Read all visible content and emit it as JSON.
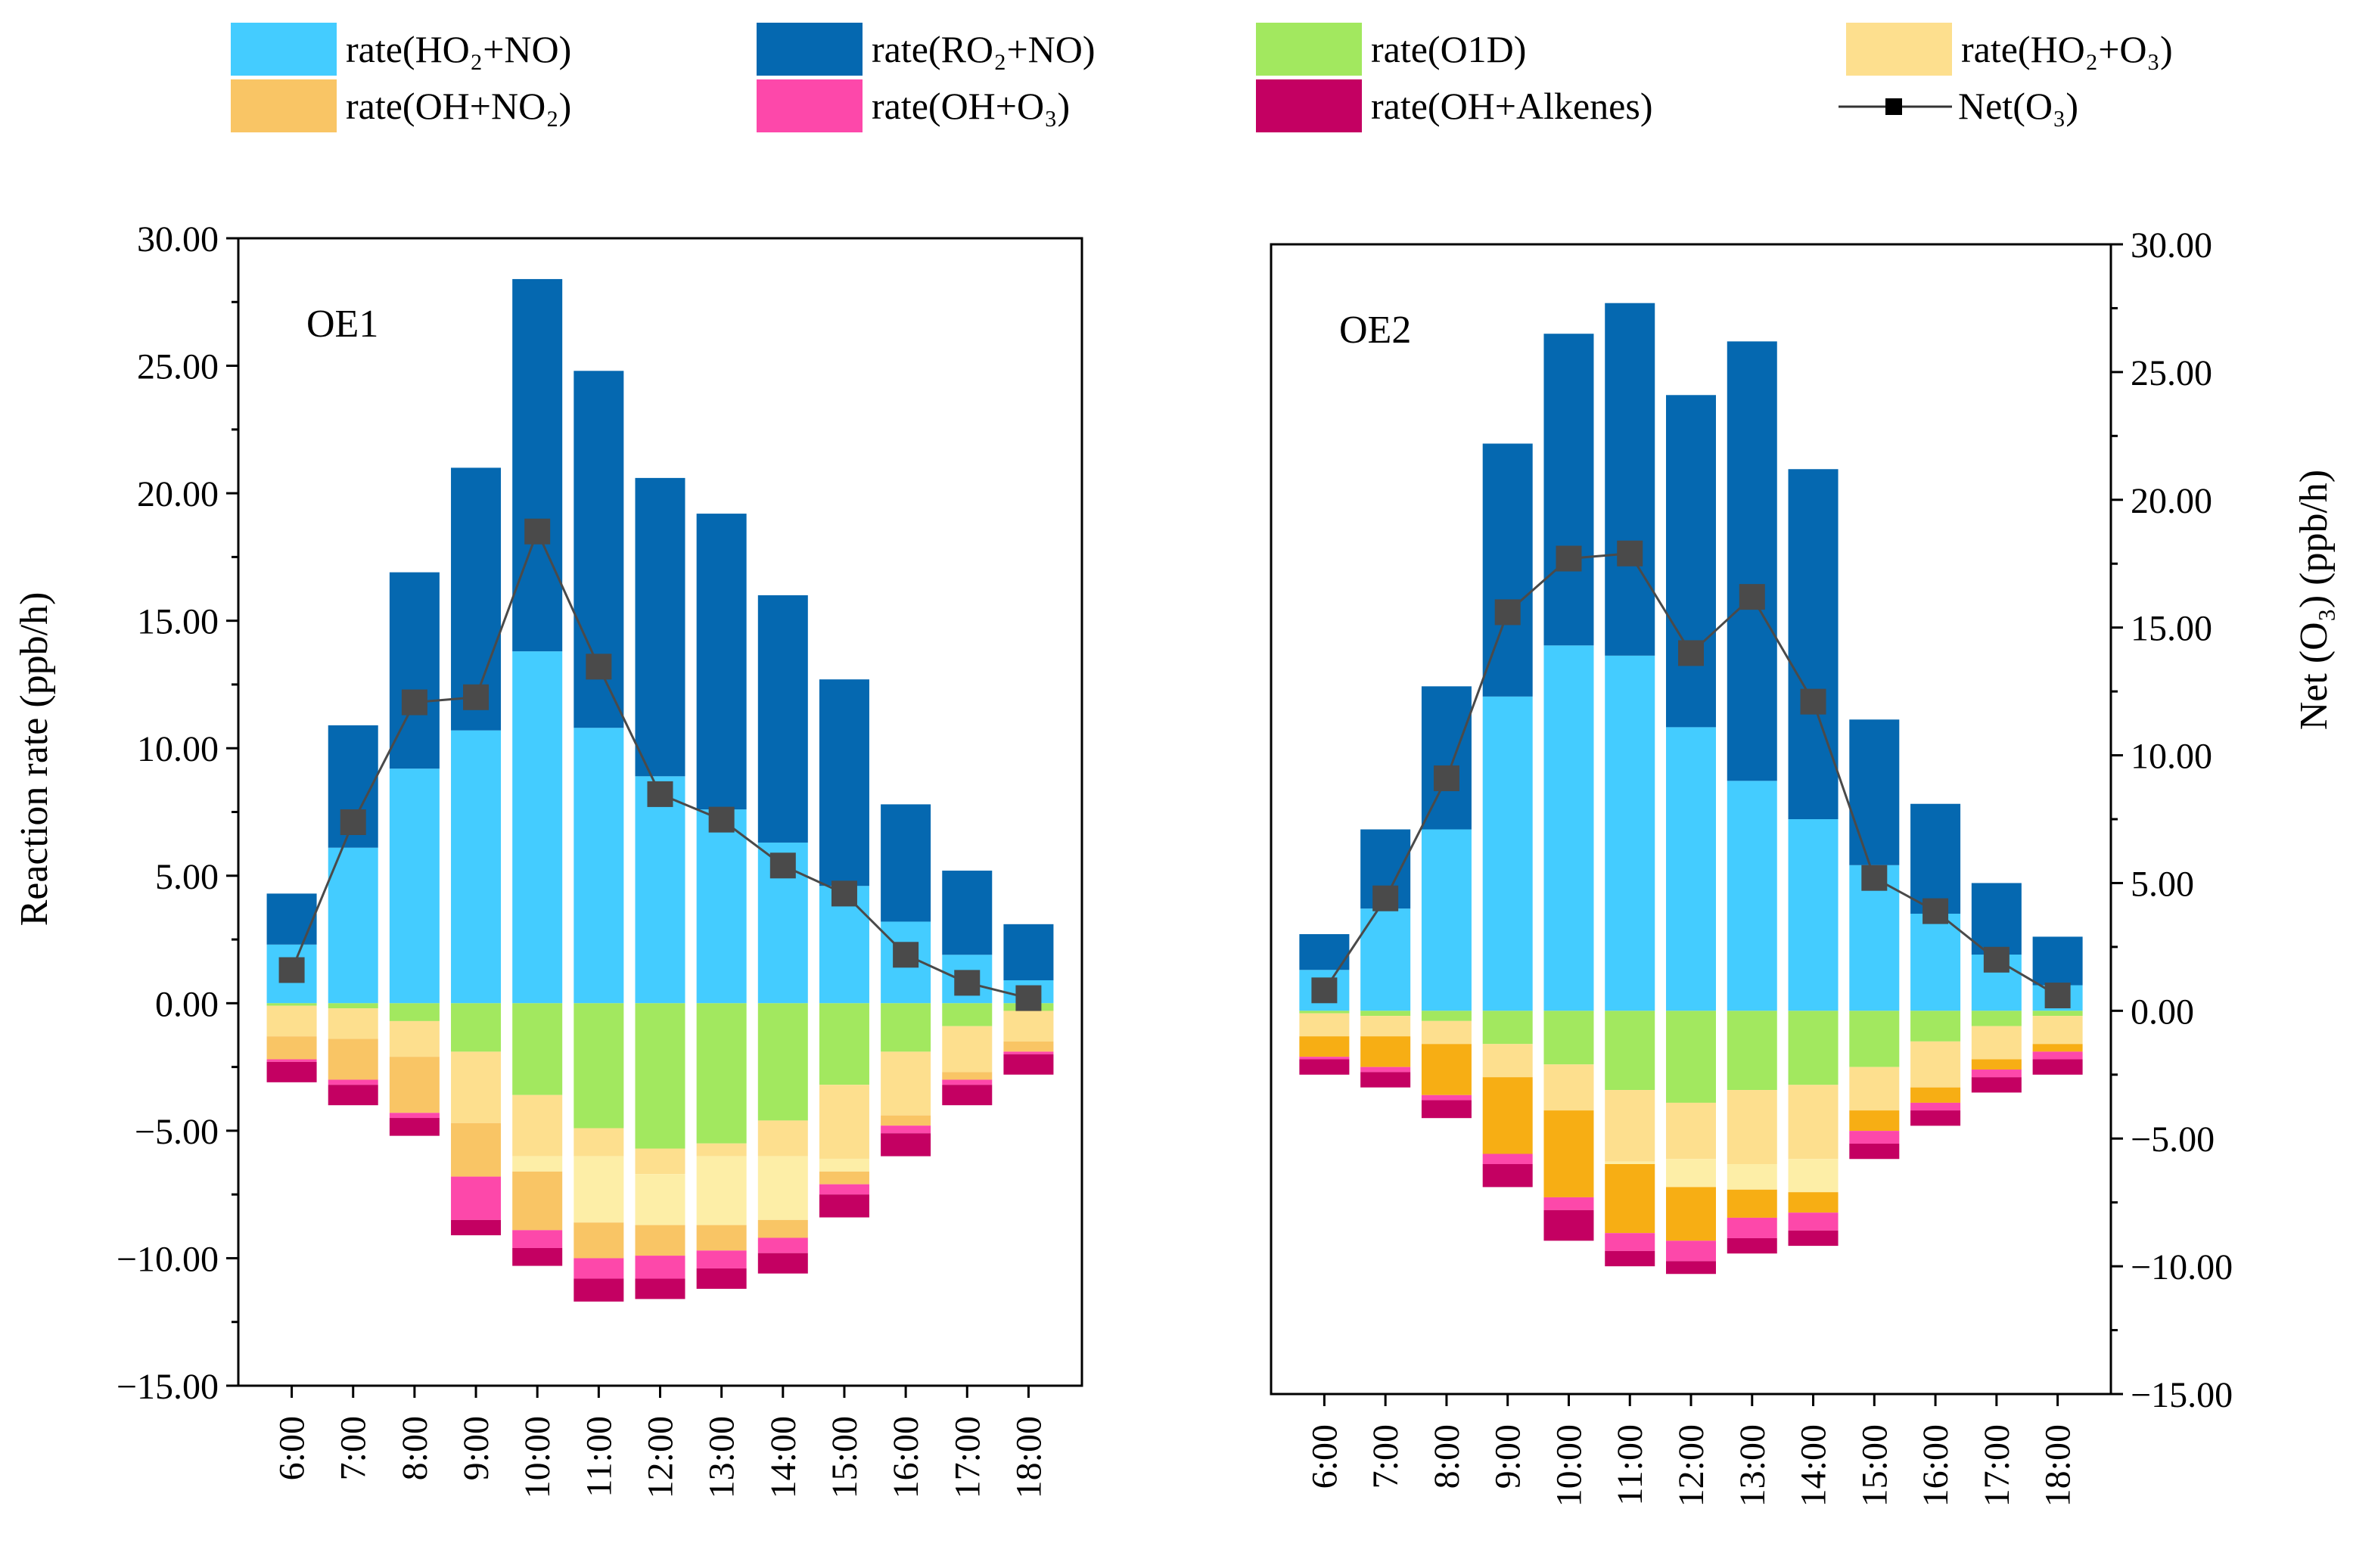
{
  "chart_data": {
    "type": "bar",
    "stacked": true,
    "legend": [
      {
        "key": "ho2_no",
        "label": "rate(HO₂+NO)",
        "color": "#44CCFF",
        "kind": "bar"
      },
      {
        "key": "ro2_no",
        "label": "rate(RO₂+NO)",
        "color": "#0568B0",
        "kind": "bar"
      },
      {
        "key": "o1d",
        "label": "rate(O1D)",
        "color": "#A2E85F",
        "kind": "bar"
      },
      {
        "key": "ho2_o3",
        "label": "rate(HO₂+O₃)",
        "color": "#FDDF8E",
        "kind": "bar"
      },
      {
        "key": "oh_no2",
        "label": "rate(OH+NO₂)",
        "color": "#F9C565",
        "kind": "bar"
      },
      {
        "key": "oh_o3",
        "label": "rate(OH+O₃)",
        "color": "#FD48AA",
        "kind": "bar"
      },
      {
        "key": "oh_alk",
        "label": "rate(OH+Alkenes)",
        "color": "#C40062",
        "kind": "bar"
      },
      {
        "key": "net_o3",
        "label": "Net(O₃)",
        "color": "#4A4A4A",
        "kind": "line"
      }
    ],
    "charts": [
      {
        "label": "OE1",
        "ylabel": "Reaction rate (ppb/h)",
        "ylabel_side": "left",
        "ylim": [
          -15,
          30
        ],
        "yticks": [
          "30.00",
          "25.00",
          "20.00",
          "15.00",
          "10.00",
          "5.00",
          "0.00",
          "−5.00",
          "−10.00",
          "−15.00"
        ],
        "ytick_values": [
          30,
          25,
          20,
          15,
          10,
          5,
          0,
          -5,
          -10,
          -15
        ],
        "categories": [
          "6:00",
          "7:00",
          "8:00",
          "9:00",
          "10:00",
          "11:00",
          "12:00",
          "13:00",
          "14:00",
          "15:00",
          "16:00",
          "17:00",
          "18:00"
        ],
        "positive": [
          {
            "key": "ho2_no",
            "values": [
              2.3,
              6.1,
              9.2,
              10.7,
              13.8,
              10.8,
              8.9,
              7.6,
              6.3,
              4.6,
              3.2,
              1.9,
              0.9
            ]
          },
          {
            "key": "ro2_no",
            "values": [
              2.0,
              4.8,
              7.7,
              10.3,
              14.6,
              14.0,
              11.7,
              11.6,
              9.7,
              8.1,
              4.6,
              3.3,
              2.2
            ]
          }
        ],
        "negative": [
          {
            "key": "o1d",
            "color": "#A2E85F",
            "values": [
              -0.1,
              -0.2,
              -0.7,
              -1.9,
              -3.6,
              -4.9,
              -5.7,
              -5.5,
              -4.6,
              -3.2,
              -1.9,
              -0.9,
              -0.3
            ]
          },
          {
            "key": "ho2_o3",
            "color": "#FDDF8E",
            "values": [
              -1.2,
              -1.2,
              -1.4,
              -2.8,
              -2.4,
              -1.1,
              -1.0,
              -0.5,
              -1.4,
              -2.9,
              -2.5,
              -1.8,
              -1.2
            ]
          },
          {
            "key": "ho2_o3_b",
            "color": "#FDEEA7",
            "values": [
              0,
              0,
              0,
              0,
              -0.6,
              -2.6,
              -2.0,
              -2.7,
              -2.5,
              -0.5,
              0,
              0,
              0
            ]
          },
          {
            "key": "oh_no2",
            "color": "#F9C565",
            "values": [
              -0.9,
              -1.6,
              -2.2,
              -2.1,
              -2.3,
              -1.4,
              -1.2,
              -1.0,
              -0.7,
              -0.5,
              -0.4,
              -0.3,
              -0.4
            ]
          },
          {
            "key": "oh_o3",
            "color": "#FD48AA",
            "values": [
              -0.1,
              -0.2,
              -0.2,
              -1.7,
              -0.7,
              -0.8,
              -0.9,
              -0.7,
              -0.6,
              -0.4,
              -0.3,
              -0.2,
              -0.1
            ]
          },
          {
            "key": "oh_alk",
            "color": "#C40062",
            "values": [
              -0.8,
              -0.8,
              -0.7,
              -0.6,
              -0.7,
              -0.9,
              -0.8,
              -0.8,
              -0.8,
              -0.9,
              -0.9,
              -0.8,
              -0.8
            ]
          }
        ],
        "net": [
          1.3,
          7.1,
          11.8,
          12.0,
          18.5,
          13.2,
          8.2,
          7.2,
          5.4,
          4.3,
          1.9,
          0.8,
          0.2
        ]
      },
      {
        "label": "OE2",
        "ylabel": "Net (O₃) (ppb/h)",
        "ylabel_side": "right",
        "ylim": [
          -15,
          30
        ],
        "yticks": [
          "30.00",
          "25.00",
          "20.00",
          "15.00",
          "10.00",
          "5.00",
          "0.00",
          "−5.00",
          "−10.00",
          "−15.00"
        ],
        "ytick_values": [
          30,
          25,
          20,
          15,
          10,
          5,
          0,
          -5,
          -10,
          -15
        ],
        "categories": [
          "6:00",
          "7:00",
          "8:00",
          "9:00",
          "10:00",
          "11:00",
          "12:00",
          "13:00",
          "14:00",
          "15:00",
          "16:00",
          "17:00",
          "18:00"
        ],
        "positive": [
          {
            "key": "ho2_no",
            "values": [
              1.6,
              4.0,
              7.1,
              12.3,
              14.3,
              13.9,
              11.1,
              9.0,
              7.5,
              5.7,
              3.8,
              2.2,
              1.0
            ]
          },
          {
            "key": "ro2_no",
            "values": [
              1.4,
              3.1,
              5.6,
              9.9,
              12.2,
              13.8,
              13.0,
              17.2,
              13.7,
              5.7,
              4.3,
              2.8,
              1.9
            ]
          }
        ],
        "negative": [
          {
            "key": "o1d",
            "color": "#A2E85F",
            "values": [
              -0.1,
              -0.2,
              -0.4,
              -1.3,
              -2.1,
              -3.1,
              -3.6,
              -3.1,
              -2.9,
              -2.2,
              -1.2,
              -0.6,
              -0.2
            ]
          },
          {
            "key": "ho2_o3",
            "color": "#FDDF8E",
            "values": [
              -0.9,
              -0.8,
              -0.9,
              -1.3,
              -1.8,
              -2.8,
              -2.2,
              -2.9,
              -2.9,
              -1.7,
              -1.8,
              -1.3,
              -1.1
            ]
          },
          {
            "key": "ho2_o3_b",
            "color": "#FDEEA7",
            "values": [
              0,
              0,
              0,
              0,
              0,
              -0.1,
              -1.1,
              -1.0,
              -1.3,
              0,
              0,
              0,
              0
            ]
          },
          {
            "key": "oh_no2",
            "color": "#F7AE14",
            "values": [
              -0.8,
              -1.2,
              -2.0,
              -3.0,
              -3.4,
              -2.7,
              -2.1,
              -1.1,
              -0.8,
              -0.8,
              -0.6,
              -0.4,
              -0.3
            ]
          },
          {
            "key": "oh_o3",
            "color": "#FD48AA",
            "values": [
              -0.1,
              -0.2,
              -0.2,
              -0.4,
              -0.5,
              -0.7,
              -0.8,
              -0.8,
              -0.7,
              -0.5,
              -0.3,
              -0.3,
              -0.3
            ]
          },
          {
            "key": "oh_alk",
            "color": "#C40062",
            "values": [
              -0.6,
              -0.6,
              -0.7,
              -0.9,
              -1.2,
              -0.6,
              -0.5,
              -0.6,
              -0.6,
              -0.6,
              -0.6,
              -0.6,
              -0.6
            ]
          }
        ],
        "net": [
          0.8,
          4.4,
          9.1,
          15.6,
          17.7,
          17.9,
          14.0,
          16.2,
          12.1,
          5.2,
          3.9,
          2.0,
          0.6
        ]
      }
    ]
  }
}
